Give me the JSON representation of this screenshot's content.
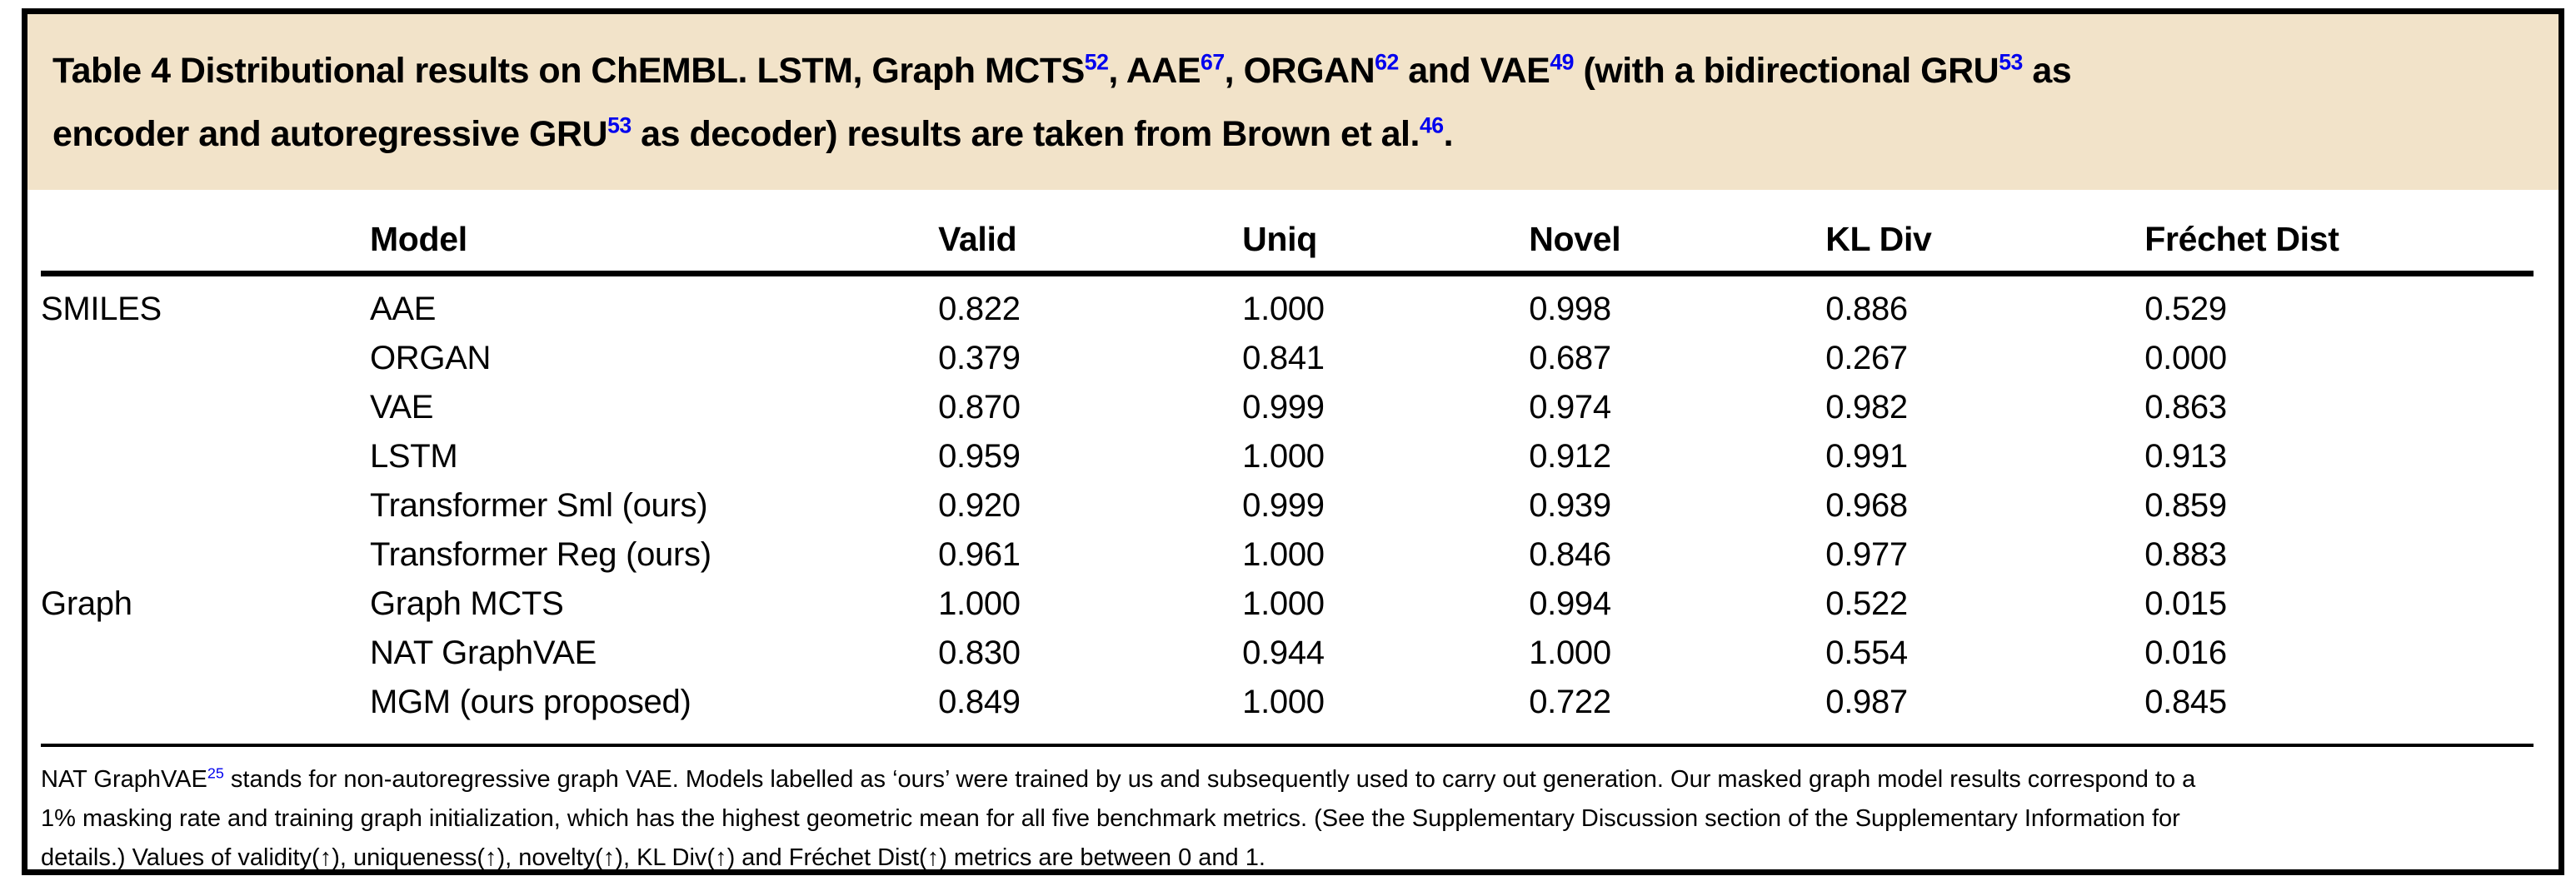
{
  "colors": {
    "caption_background": "#f2e3c9",
    "citation_blue": "#0000ee",
    "rule_black": "#000000"
  },
  "caption": {
    "segments": [
      {
        "text": "Table 4 Distributional results on ChEMBL. LSTM, Graph MCTS"
      },
      {
        "sup": "52"
      },
      {
        "text": ", AAE"
      },
      {
        "sup": "67"
      },
      {
        "text": ", ORGAN"
      },
      {
        "sup": "62"
      },
      {
        "text": " and VAE"
      },
      {
        "sup": "49"
      },
      {
        "text": " (with a bidirectional GRU"
      },
      {
        "sup": "53"
      },
      {
        "text": " as"
      },
      {
        "br": true
      },
      {
        "text": "encoder and autoregressive GRU"
      },
      {
        "sup": "53"
      },
      {
        "text": " as decoder) results are taken from Brown et al."
      },
      {
        "sup": "46"
      },
      {
        "text": "."
      }
    ]
  },
  "table": {
    "columns": [
      "",
      "Model",
      "Valid",
      "Uniq",
      "Novel",
      "KL Div",
      "Fréchet Dist"
    ],
    "rows": [
      [
        "SMILES",
        "AAE",
        "0.822",
        "1.000",
        "0.998",
        "0.886",
        "0.529"
      ],
      [
        "",
        "ORGAN",
        "0.379",
        "0.841",
        "0.687",
        "0.267",
        "0.000"
      ],
      [
        "",
        "VAE",
        "0.870",
        "0.999",
        "0.974",
        "0.982",
        "0.863"
      ],
      [
        "",
        "LSTM",
        "0.959",
        "1.000",
        "0.912",
        "0.991",
        "0.913"
      ],
      [
        "",
        "Transformer Sml (ours)",
        "0.920",
        "0.999",
        "0.939",
        "0.968",
        "0.859"
      ],
      [
        "",
        "Transformer Reg (ours)",
        "0.961",
        "1.000",
        "0.846",
        "0.977",
        "0.883"
      ],
      [
        "Graph",
        "Graph MCTS",
        "1.000",
        "1.000",
        "0.994",
        "0.522",
        "0.015"
      ],
      [
        "",
        "NAT GraphVAE",
        "0.830",
        "0.944",
        "1.000",
        "0.554",
        "0.016"
      ],
      [
        "",
        "MGM (ours proposed)",
        "0.849",
        "1.000",
        "0.722",
        "0.987",
        "0.845"
      ]
    ]
  },
  "footnote": {
    "segments": [
      {
        "text": "NAT GraphVAE"
      },
      {
        "sup": "25"
      },
      {
        "text": " stands for non-autoregressive graph VAE. Models labelled as ‘ours’ were trained by us and subsequently used to carry out generation. Our masked graph model results correspond to a"
      },
      {
        "br": true
      },
      {
        "text": "1% masking rate and training graph initialization, which has the highest geometric mean for all five benchmark metrics. (See the Supplementary Discussion section of the Supplementary Information for"
      },
      {
        "br": true
      },
      {
        "text": "details.) Values of validity(↑), uniqueness(↑), novelty(↑), KL Div(↑) and Fréchet Dist(↑) metrics are between 0 and 1."
      }
    ]
  }
}
